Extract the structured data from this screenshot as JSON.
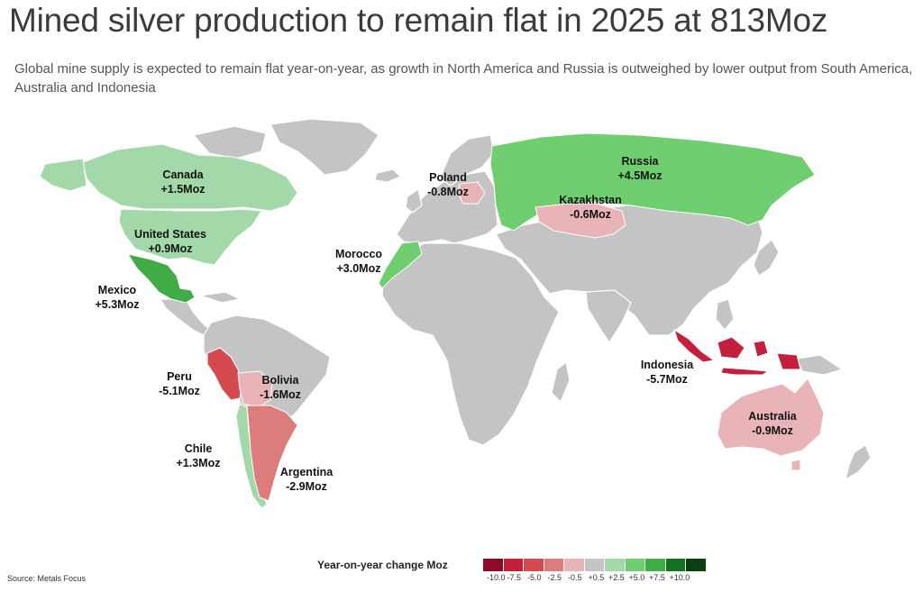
{
  "title": "Mined silver production to remain flat in 2025 at 813Moz",
  "subtitle": "Global mine supply is expected to remain flat year-on-year, as growth in North America and Russia is outweighed by lower output from South America, Australia and Indonesia",
  "source": "Source: Metals Focus",
  "legend": {
    "title": "Year-on-year change Moz",
    "colors": [
      "#8e0b27",
      "#c41f3c",
      "#d44a4f",
      "#dc7c7c",
      "#e9b4b8",
      "#c4c4c4",
      "#a3d9a8",
      "#6fcf70",
      "#3fac45",
      "#12721f",
      "#0a3f0f"
    ],
    "ticks": [
      "-10.0",
      "-7.5",
      "-5.0",
      "-2.5",
      "-0.5",
      "+0.5",
      "+2.5",
      "+5.0",
      "+7.5",
      "+10.0"
    ]
  },
  "chart_data": {
    "type": "map",
    "unit": "Moz",
    "countries": [
      {
        "name": "Canada",
        "change": 1.5,
        "label": "+1.5Moz",
        "color": "#a3d9a8"
      },
      {
        "name": "United States",
        "change": 0.9,
        "label": "+0.9Moz",
        "color": "#a3d9a8"
      },
      {
        "name": "Mexico",
        "change": 5.3,
        "label": "+5.3Moz",
        "color": "#3fac45"
      },
      {
        "name": "Peru",
        "change": -5.1,
        "label": "-5.1Moz",
        "color": "#d44a4f"
      },
      {
        "name": "Bolivia",
        "change": -1.6,
        "label": "-1.6Moz",
        "color": "#e9b4b8"
      },
      {
        "name": "Chile",
        "change": 1.3,
        "label": "+1.3Moz",
        "color": "#a3d9a8"
      },
      {
        "name": "Argentina",
        "change": -2.9,
        "label": "-2.9Moz",
        "color": "#dc7c7c"
      },
      {
        "name": "Poland",
        "change": -0.8,
        "label": "-0.8Moz",
        "color": "#e9b4b8"
      },
      {
        "name": "Russia",
        "change": 4.5,
        "label": "+4.5Moz",
        "color": "#6fcf70"
      },
      {
        "name": "Kazakhstan",
        "change": -0.6,
        "label": "-0.6Moz",
        "color": "#e9b4b8"
      },
      {
        "name": "Morocco",
        "change": 3.0,
        "label": "+3.0Moz",
        "color": "#6fcf70"
      },
      {
        "name": "Indonesia",
        "change": -5.7,
        "label": "-5.7Moz",
        "color": "#c41f3c"
      },
      {
        "name": "Australia",
        "change": -0.9,
        "label": "-0.9Moz",
        "color": "#e9b4b8"
      }
    ]
  }
}
